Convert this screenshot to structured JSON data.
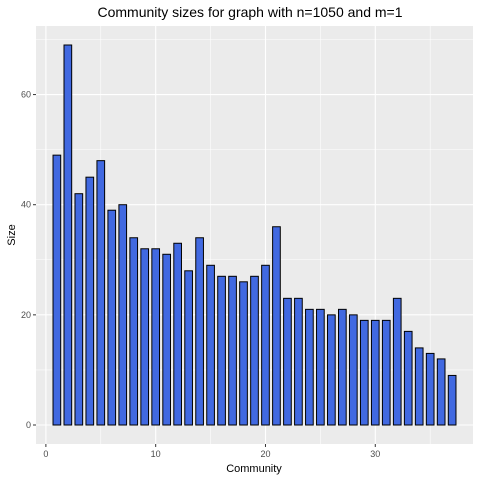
{
  "chart_data": {
    "type": "bar",
    "title": "Community sizes for graph with n=1050 and m=1",
    "xlabel": "Community",
    "ylabel": "Size",
    "categories": [
      1,
      2,
      3,
      4,
      5,
      6,
      7,
      8,
      9,
      10,
      11,
      12,
      13,
      14,
      15,
      16,
      17,
      18,
      19,
      20,
      21,
      22,
      23,
      24,
      25,
      26,
      27,
      28,
      29,
      30,
      31,
      32,
      33,
      34,
      35,
      36,
      37
    ],
    "values": [
      49,
      69,
      42,
      45,
      48,
      39,
      40,
      34,
      32,
      32,
      31,
      33,
      28,
      34,
      29,
      27,
      27,
      26,
      27,
      29,
      36,
      23,
      23,
      21,
      21,
      20,
      21,
      20,
      19,
      19,
      19,
      23,
      17,
      14,
      13,
      12,
      9
    ],
    "xlim": [
      -0.9,
      38.9
    ],
    "ylim": [
      -3.45,
      72.45
    ],
    "x_ticks": [
      0,
      10,
      20,
      30
    ],
    "x_tick_labels": [
      "0",
      "10",
      "20",
      "30"
    ],
    "y_ticks": [
      0,
      20,
      40,
      60
    ],
    "y_tick_labels": [
      "0",
      "20",
      "40",
      "60"
    ],
    "bar_width": 0.7,
    "bar_color": "#4169E1",
    "bar_outline": "#000000",
    "panel_background": "#EBEBEB",
    "grid_color": "#FFFFFF",
    "grid": true,
    "legend": "none"
  }
}
